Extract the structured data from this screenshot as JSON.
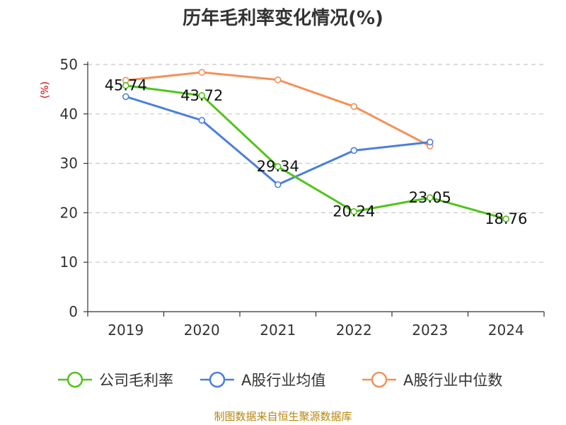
{
  "chart_data": {
    "type": "line",
    "title": "历年毛利率变化情况(%)",
    "ylabel": "(%)",
    "xlabel": "",
    "categories": [
      "2019",
      "2020",
      "2021",
      "2022",
      "2023",
      "2024"
    ],
    "ylim": [
      0,
      50
    ],
    "yticks": [
      0,
      10,
      20,
      30,
      40,
      50
    ],
    "grid": true,
    "legend_position": "bottom",
    "series": [
      {
        "name": "公司毛利率",
        "color": "#52c41a",
        "values": [
          45.74,
          43.72,
          29.34,
          20.24,
          23.05,
          18.76
        ],
        "labels": [
          "45.74",
          "43.72",
          "29.34",
          "20.24",
          "23.05",
          "18.76"
        ]
      },
      {
        "name": "A股行业均值",
        "color": "#4a7fdc",
        "values": [
          43.5,
          38.7,
          25.7,
          32.6,
          34.3,
          null
        ]
      },
      {
        "name": "A股行业中位数",
        "color": "#f4915a",
        "values": [
          46.8,
          48.4,
          46.9,
          41.5,
          33.5,
          null
        ]
      }
    ]
  },
  "source": "制图数据来自恒生聚源数据库"
}
